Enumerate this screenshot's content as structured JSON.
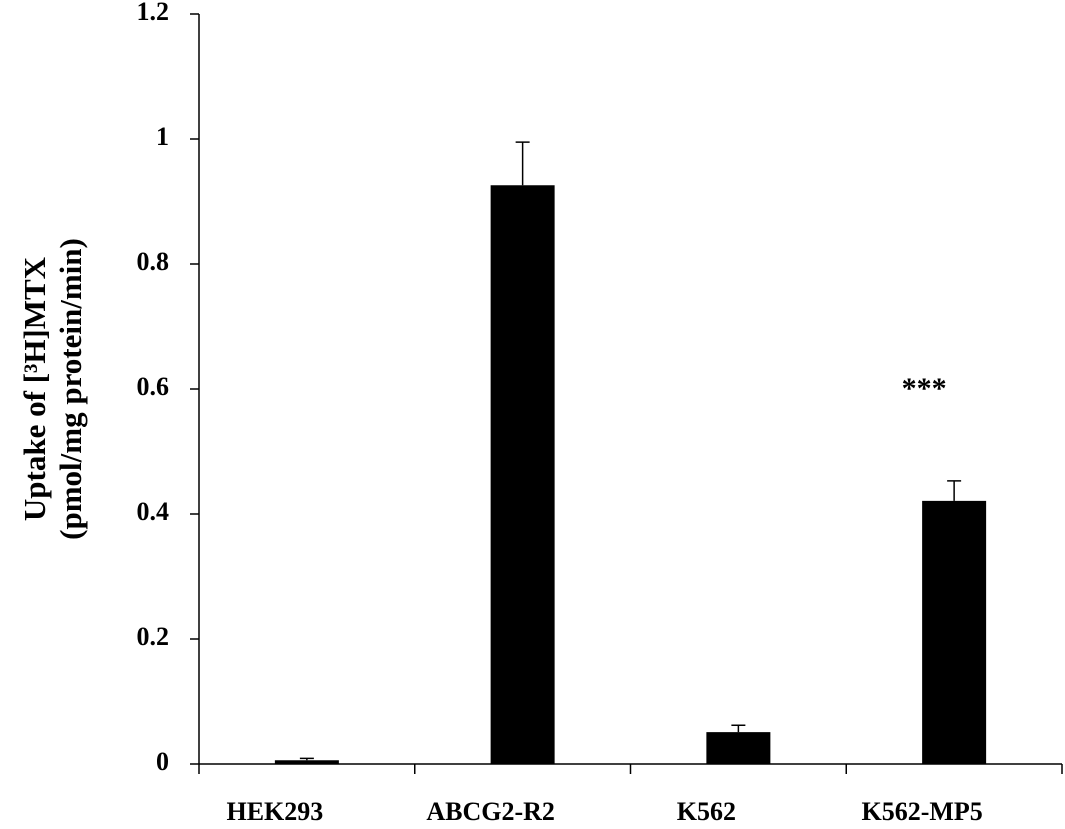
{
  "chart_data": {
    "type": "bar",
    "ylabel": [
      "Uptake of [³H]MTX",
      "(pmol/mg protein/min)"
    ],
    "categories": [
      "HEK293",
      "ABCG2-R2",
      "K562",
      "K562-MP5"
    ],
    "values": [
      0.006,
      0.926,
      0.051,
      0.421
    ],
    "errors": [
      0.003,
      0.069,
      0.011,
      0.032
    ],
    "color": "#000000",
    "annotation": "***",
    "ylim": [
      0,
      1.2
    ],
    "yticks": [
      0,
      0.2,
      0.4,
      0.6,
      0.8,
      1,
      1.2
    ],
    "grid": false
  }
}
